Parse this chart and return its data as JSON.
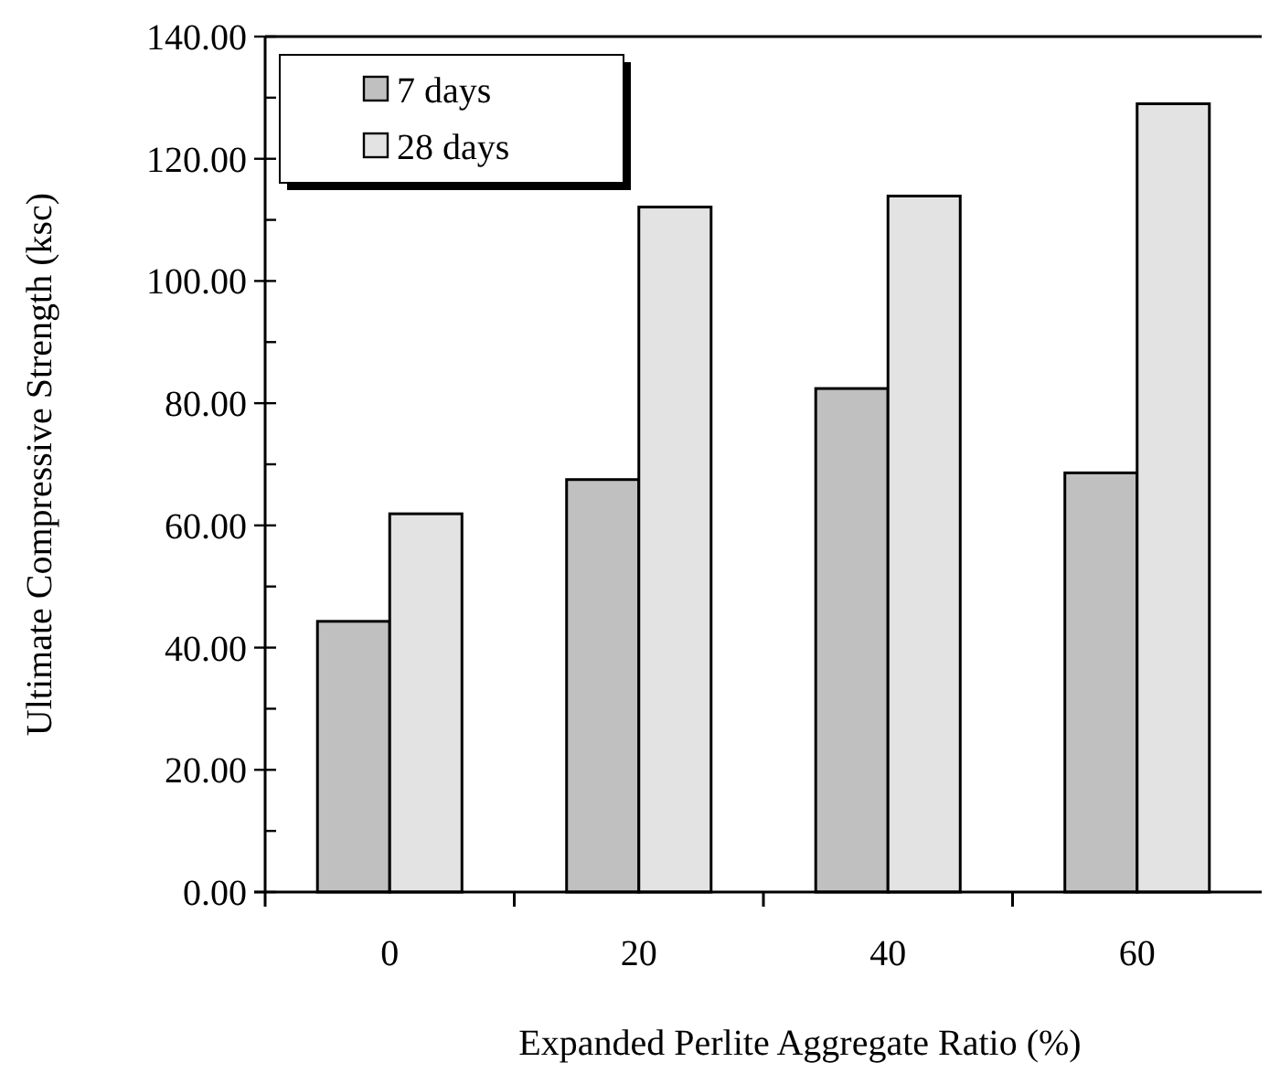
{
  "chart_data": {
    "type": "bar",
    "xlabel": "Expanded Perlite Aggregate Ratio  (%)",
    "ylabel": "Ultimate Compressive Strength (ksc)",
    "categories": [
      "0",
      "20",
      "40",
      "60"
    ],
    "series": [
      {
        "name": "7 days",
        "color": "#c0c0c0",
        "values": [
          44.3,
          67.5,
          82.4,
          68.6
        ]
      },
      {
        "name": "28 days",
        "color": "#e3e3e3",
        "values": [
          61.9,
          112.1,
          113.9,
          129.0
        ]
      }
    ],
    "ylim": [
      0,
      140
    ],
    "yticks": [
      {
        "value": 0,
        "label": "0.00"
      },
      {
        "value": 10,
        "label": null
      },
      {
        "value": 20,
        "label": "20.00"
      },
      {
        "value": 30,
        "label": null
      },
      {
        "value": 40,
        "label": "40.00"
      },
      {
        "value": 50,
        "label": null
      },
      {
        "value": 60,
        "label": "60.00"
      },
      {
        "value": 70,
        "label": null
      },
      {
        "value": 80,
        "label": "80.00"
      },
      {
        "value": 90,
        "label": null
      },
      {
        "value": 100,
        "label": "100.00"
      },
      {
        "value": 110,
        "label": null
      },
      {
        "value": 120,
        "label": "120.00"
      },
      {
        "value": 130,
        "label": null
      },
      {
        "value": 140,
        "label": "140.00"
      }
    ],
    "grid": false,
    "legend": "top left"
  }
}
